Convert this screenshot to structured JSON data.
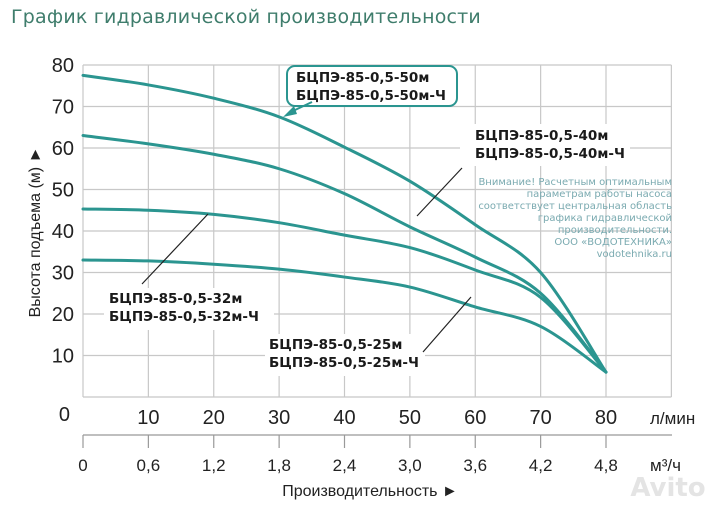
{
  "title": "График гидравлической производительности",
  "colors": {
    "curve": "#2b9590",
    "grid": "#c8c8c8",
    "title": "#3f7d6c",
    "note": "#7aaab0"
  },
  "chart_data": {
    "type": "line",
    "xlabel": "Производительность ►",
    "ylabel": "Высота подъема (м) ►",
    "x_unit": "л/мин",
    "x2_unit": "м³/ч",
    "xlim": [
      0,
      90
    ],
    "ylim": [
      0,
      80
    ],
    "grid": true,
    "y_ticks": [
      "0",
      "10",
      "20",
      "30",
      "40",
      "50",
      "60",
      "70",
      "80"
    ],
    "x_ticks": [
      "10",
      "20",
      "30",
      "40",
      "50",
      "60",
      "70",
      "80"
    ],
    "x2_ticks": [
      "0",
      "0,6",
      "1,2",
      "1,8",
      "2,4",
      "3,0",
      "3,6",
      "4,2",
      "4,8"
    ],
    "x": [
      0,
      10,
      20,
      30,
      40,
      50,
      60,
      70,
      80
    ],
    "series": [
      {
        "name": "БЦПЭ-85-0,5-50м / БЦПЭ-85-0,5-50м-Ч",
        "label1": "БЦПЭ-85-0,5-50м",
        "label2": "БЦПЭ-85-0,5-50м-Ч",
        "values": [
          77.5,
          75.2,
          72,
          67.5,
          60.2,
          52,
          41.5,
          30,
          6
        ]
      },
      {
        "name": "БЦПЭ-85-0,5-40м / БЦПЭ-85-0,5-40м-Ч",
        "label1": "БЦПЭ-85-0,5-40м",
        "label2": "БЦПЭ-85-0,5-40м-Ч",
        "values": [
          63,
          61,
          58.5,
          55,
          49,
          41,
          33.7,
          25,
          6
        ]
      },
      {
        "name": "БЦПЭ-85-0,5-32м / БЦПЭ-85-0,5-32м-Ч",
        "label1": "БЦПЭ-85-0,5-32м",
        "label2": "БЦПЭ-85-0,5-32м-Ч",
        "values": [
          45.3,
          45,
          44,
          42,
          39,
          36,
          30.6,
          24,
          6
        ]
      },
      {
        "name": "БЦПЭ-85-0,5-25м / БЦПЭ-85-0,5-25м-Ч",
        "label1": "БЦПЭ-85-0,5-25м",
        "label2": "БЦПЭ-85-0,5-25м-Ч",
        "values": [
          33,
          32.8,
          32,
          30.8,
          28.9,
          26.5,
          21.7,
          17,
          6
        ]
      }
    ],
    "note": [
      "Внимание! Расчетным оптимальным",
      "параметрам работы насоса",
      "соответствует центральная область",
      "графика гидравлической",
      "производительности.",
      "ООО «ВОДОТЕХНИКА»",
      "vodotehnika.ru"
    ]
  },
  "watermark": "Avito"
}
